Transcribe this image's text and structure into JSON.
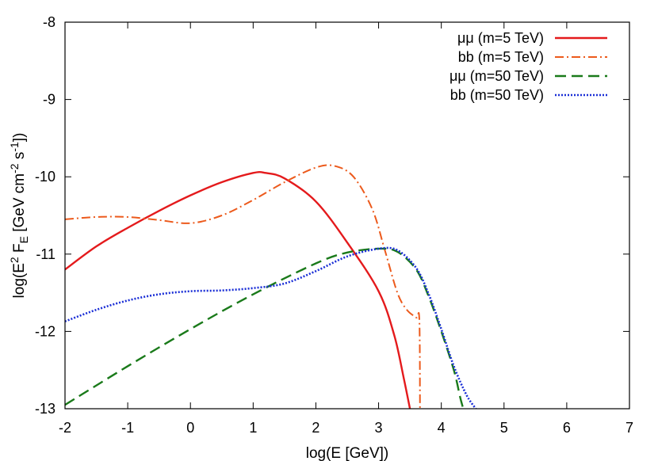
{
  "chart_data": {
    "type": "line",
    "xlabel": "log(E [GeV])",
    "ylabel": {
      "parts": [
        "log(E",
        "2",
        " F",
        "E",
        " [GeV cm",
        "-2",
        " s",
        "-1",
        "])"
      ]
    },
    "xlim": [
      -2,
      7
    ],
    "ylim": [
      -13,
      -8
    ],
    "xticks": [
      "-2",
      "-1",
      "0",
      "1",
      "2",
      "3",
      "4",
      "5",
      "6",
      "7"
    ],
    "yticks": [
      "-13",
      "-12",
      "-11",
      "-10",
      "-9",
      "-8"
    ],
    "grid": false,
    "legend_position": "top-right",
    "series": [
      {
        "name": "μμ (m=5 TeV)",
        "color": "#e41a1c",
        "style": "solid",
        "points": [
          [
            -2,
            -11.2
          ],
          [
            -1.5,
            -10.9
          ],
          [
            -1,
            -10.66
          ],
          [
            -0.5,
            -10.44
          ],
          [
            0,
            -10.24
          ],
          [
            0.5,
            -10.07
          ],
          [
            1,
            -9.95
          ],
          [
            1.2,
            -9.95
          ],
          [
            1.5,
            -10.02
          ],
          [
            2,
            -10.32
          ],
          [
            2.5,
            -10.85
          ],
          [
            3,
            -11.48
          ],
          [
            3.25,
            -12.05
          ],
          [
            3.4,
            -12.6
          ],
          [
            3.5,
            -13.0
          ]
        ]
      },
      {
        "name": "bb (m=5 TeV)",
        "color": "#ec5a1c",
        "style": "dashdot",
        "points": [
          [
            -2,
            -10.55
          ],
          [
            -1.5,
            -10.52
          ],
          [
            -1,
            -10.52
          ],
          [
            -0.5,
            -10.56
          ],
          [
            0,
            -10.6
          ],
          [
            0.5,
            -10.5
          ],
          [
            1,
            -10.3
          ],
          [
            1.5,
            -10.07
          ],
          [
            2,
            -9.88
          ],
          [
            2.3,
            -9.86
          ],
          [
            2.6,
            -10.0
          ],
          [
            2.9,
            -10.42
          ],
          [
            3.1,
            -10.95
          ],
          [
            3.3,
            -11.5
          ],
          [
            3.45,
            -11.72
          ],
          [
            3.6,
            -11.82
          ],
          [
            3.65,
            -11.85
          ],
          [
            3.66,
            -13.0
          ]
        ]
      },
      {
        "name": "μμ (m=50 TeV)",
        "color": "#1a7a1a",
        "style": "dashed",
        "points": [
          [
            -2,
            -12.95
          ],
          [
            -1,
            -12.45
          ],
          [
            0,
            -11.97
          ],
          [
            1,
            -11.52
          ],
          [
            2,
            -11.12
          ],
          [
            2.5,
            -10.98
          ],
          [
            3,
            -10.93
          ],
          [
            3.3,
            -10.97
          ],
          [
            3.6,
            -11.2
          ],
          [
            3.8,
            -11.55
          ],
          [
            4,
            -12.0
          ],
          [
            4.2,
            -12.5
          ],
          [
            4.3,
            -12.85
          ],
          [
            4.35,
            -13.0
          ]
        ]
      },
      {
        "name": "bb (m=50 TeV)",
        "color": "#1a2ed6",
        "style": "dotted",
        "points": [
          [
            -2,
            -11.87
          ],
          [
            -1.5,
            -11.72
          ],
          [
            -1,
            -11.6
          ],
          [
            -0.5,
            -11.52
          ],
          [
            0,
            -11.48
          ],
          [
            0.5,
            -11.47
          ],
          [
            1,
            -11.44
          ],
          [
            1.5,
            -11.38
          ],
          [
            2,
            -11.22
          ],
          [
            2.5,
            -11.03
          ],
          [
            3,
            -10.93
          ],
          [
            3.3,
            -10.95
          ],
          [
            3.6,
            -11.18
          ],
          [
            3.8,
            -11.52
          ],
          [
            4,
            -11.97
          ],
          [
            4.2,
            -12.45
          ],
          [
            4.4,
            -12.82
          ],
          [
            4.55,
            -13.0
          ]
        ]
      }
    ]
  }
}
